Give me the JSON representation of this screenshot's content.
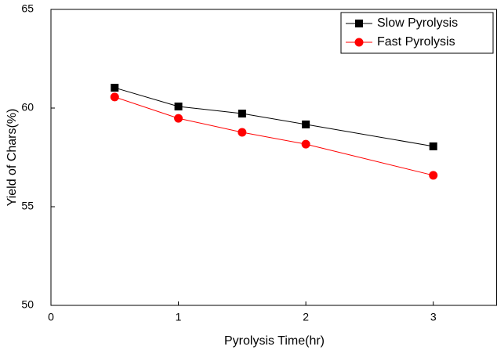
{
  "chart_data": {
    "type": "line",
    "x_label": "Pyrolysis Time(hr)",
    "y_label": "Yield of Chars(%)",
    "x": [
      0.5,
      1,
      1.5,
      2,
      3
    ],
    "series": [
      {
        "name": "Slow Pyrolysis",
        "color": "#000000",
        "marker": "square",
        "values": [
          61.03,
          60.08,
          59.72,
          59.17,
          58.06
        ]
      },
      {
        "name": "Fast Pyrolysis",
        "color": "#ff0000",
        "marker": "circle",
        "values": [
          60.56,
          59.48,
          58.77,
          58.17,
          56.59
        ]
      }
    ],
    "xlim": [
      0,
      3.5
    ],
    "xticks": [
      0,
      1,
      2,
      3
    ],
    "ylim": [
      50,
      65
    ],
    "yticks": [
      50,
      55,
      60,
      65
    ],
    "legend": "upper-right",
    "grid": false
  }
}
